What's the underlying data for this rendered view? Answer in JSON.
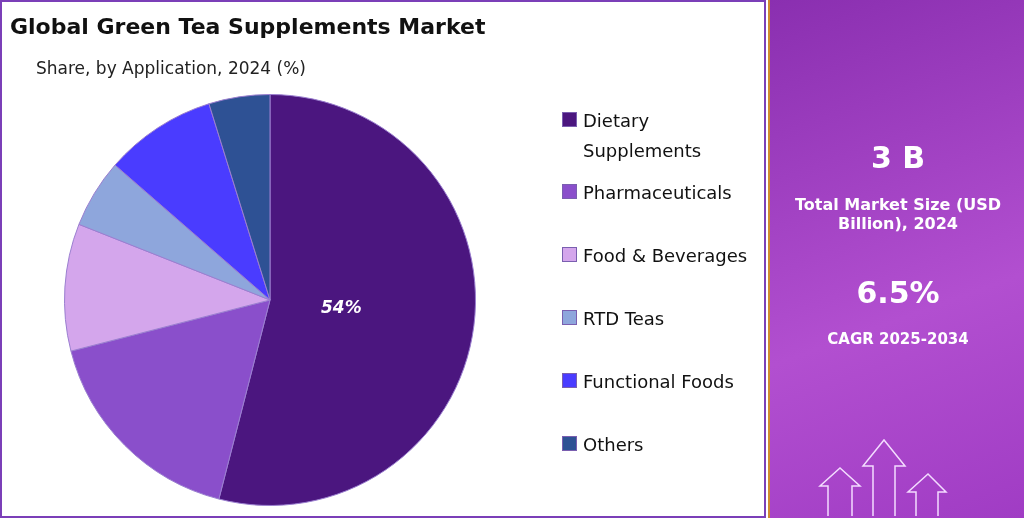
{
  "chart_data": [
    {
      "type": "pie",
      "title": "Global Green Tea Supplements Market",
      "subtitle": "Share, by Application, 2024 (%)",
      "categories": [
        "Dietary Supplements",
        "Pharmaceuticals",
        "Food & Beverages",
        "RTD Teas",
        "Functional Foods",
        "Others"
      ],
      "values": [
        54,
        17,
        10,
        5.4,
        8.8,
        4.8
      ],
      "colors": [
        "#4b167f",
        "#8a4fcb",
        "#d4a6ec",
        "#8ea6dc",
        "#4a3cff",
        "#2e5194"
      ],
      "value_labels": [
        "54%",
        null,
        null,
        null,
        null,
        null
      ],
      "legend": "right"
    },
    {
      "type": "other",
      "annotations": [
        "3 B",
        "Total Market Size (USD Billion), 2024",
        "6.5%",
        "CAGR 2025-2034"
      ]
    }
  ]
}
